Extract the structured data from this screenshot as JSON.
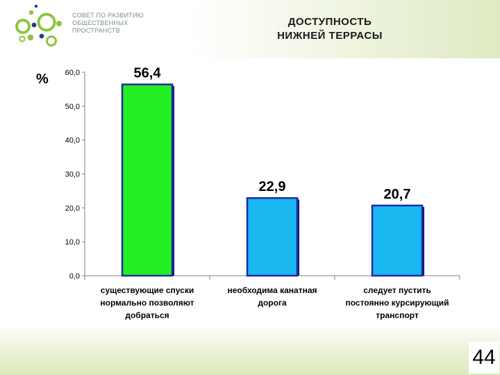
{
  "header": {
    "org_name_lines": [
      "СОВЕТ ПО РАЗВИТИЮ",
      "ОБЩЕСТВЕННЫХ",
      "ПРОСТРАНСТВ"
    ],
    "title_lines": [
      "ДОСТУПНОСТЬ",
      "НИЖНЕЙ ТЕРРАСЫ"
    ]
  },
  "page_number": "44",
  "colors": {
    "bar_green": "#22ee22",
    "bar_blue": "#1ab8f0",
    "bar_outline": "#1c2aa8",
    "logo_green": "#8cc63f",
    "logo_blue": "#1f3c8e"
  },
  "chart_data": {
    "type": "bar",
    "ylabel": "%",
    "ylim": [
      0,
      60
    ],
    "yticks": [
      "0,0",
      "10,0",
      "20,0",
      "30,0",
      "40,0",
      "50,0",
      "60,0"
    ],
    "categories": [
      [
        "существующие спуски",
        "нормально позволяют",
        "добраться"
      ],
      [
        "необходима канатная",
        "дорога"
      ],
      [
        "следует пустить",
        "постоянно курсирующий",
        "транспорт"
      ]
    ],
    "values": [
      56.4,
      22.9,
      20.7
    ],
    "value_labels": [
      "56,4",
      "22,9",
      "20,7"
    ],
    "bar_colors": [
      "green",
      "blue",
      "blue"
    ],
    "grid": false,
    "legend": "none"
  }
}
